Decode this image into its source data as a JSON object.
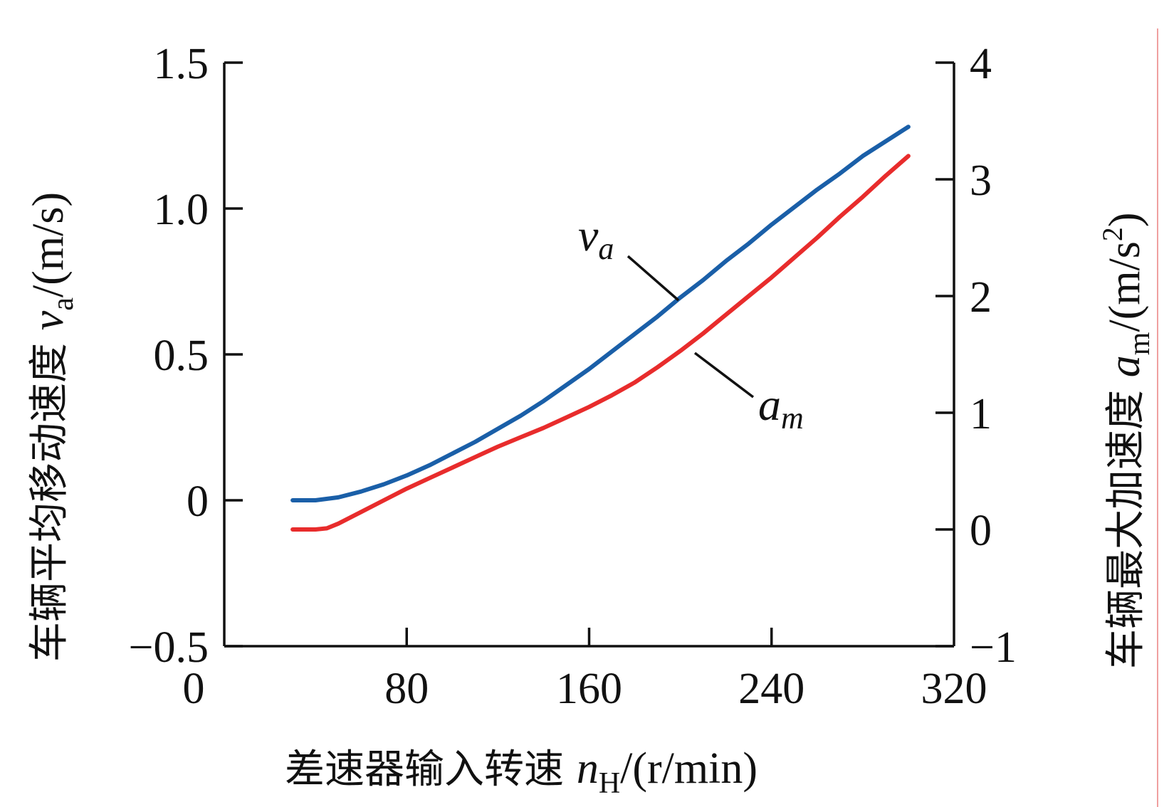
{
  "chart_data": {
    "type": "line",
    "x_axis": {
      "label_text": "差速器输入转速 ",
      "label_var": "n",
      "label_sub": "H",
      "label_unit": "/(r/min)",
      "range": [
        0,
        320
      ],
      "ticks": [
        "0",
        "80",
        "160",
        "240",
        "320"
      ]
    },
    "y_axis_left": {
      "label_text": "车辆平均移动速度 ",
      "label_var": "v",
      "label_sub": "a",
      "label_unit": "/(m/s)",
      "range": [
        -0.5,
        1.5
      ],
      "ticks": [
        "−0.5",
        "0",
        "0.5",
        "1.0",
        "1.5"
      ]
    },
    "y_axis_right": {
      "label_text": "车辆最大加速度 ",
      "label_var": "a",
      "label_sub": "m",
      "label_unit": "/(m/s",
      "label_sup": "2",
      "label_close": ")",
      "range": [
        -1,
        4
      ],
      "ticks": [
        "−1",
        "0",
        "1",
        "2",
        "3",
        "4"
      ]
    },
    "series": [
      {
        "name": "v_a",
        "label_main": "v",
        "label_sub": "a",
        "axis": "left",
        "color": "#1a5fa8",
        "x": [
          30,
          40,
          50,
          60,
          70,
          80,
          90,
          100,
          110,
          120,
          130,
          140,
          150,
          160,
          170,
          180,
          190,
          200,
          210,
          220,
          230,
          240,
          250,
          260,
          270,
          280,
          290,
          300
        ],
        "y": [
          0.0,
          0.0,
          0.01,
          0.03,
          0.055,
          0.085,
          0.12,
          0.16,
          0.2,
          0.245,
          0.29,
          0.34,
          0.395,
          0.45,
          0.51,
          0.57,
          0.63,
          0.695,
          0.755,
          0.82,
          0.88,
          0.945,
          1.005,
          1.065,
          1.12,
          1.18,
          1.23,
          1.28
        ]
      },
      {
        "name": "a_m",
        "label_main": "a",
        "label_sub": "m",
        "axis": "right",
        "color": "#e82c2c",
        "x": [
          30,
          40,
          45,
          50,
          60,
          70,
          80,
          90,
          100,
          110,
          120,
          130,
          140,
          150,
          160,
          170,
          180,
          190,
          200,
          210,
          220,
          230,
          240,
          250,
          260,
          270,
          280,
          290,
          300
        ],
        "y": [
          0.0,
          0.0,
          0.01,
          0.05,
          0.15,
          0.25,
          0.35,
          0.44,
          0.53,
          0.62,
          0.71,
          0.79,
          0.87,
          0.96,
          1.05,
          1.15,
          1.26,
          1.39,
          1.53,
          1.68,
          1.84,
          2.0,
          2.16,
          2.33,
          2.5,
          2.68,
          2.85,
          3.03,
          3.2
        ]
      }
    ],
    "grid": false,
    "legend": "inline-labels"
  }
}
